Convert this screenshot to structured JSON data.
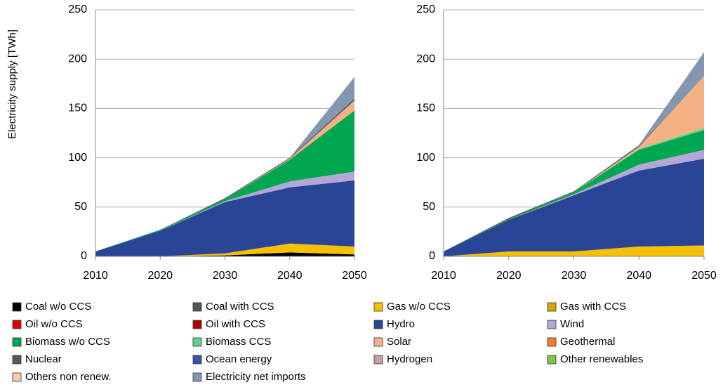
{
  "chart_data": [
    {
      "type": "area",
      "y_label": "Electricity supply [TWh]",
      "x": [
        2010,
        2020,
        2030,
        2040,
        2050
      ],
      "xlim": [
        2010,
        2050
      ],
      "xticks": [
        2010,
        2020,
        2030,
        2040,
        2050
      ],
      "ylim": [
        0,
        250
      ],
      "yticks": [
        0,
        50,
        100,
        150,
        200,
        250
      ],
      "grid": true,
      "series": [
        {
          "name": "Coal w/o CCS",
          "color": "#000000",
          "values": [
            0,
            0,
            1,
            4,
            2
          ]
        },
        {
          "name": "Coal with CCS",
          "color": "#555555",
          "values": [
            0,
            0,
            0,
            0,
            0
          ]
        },
        {
          "name": "Gas w/o CCS",
          "color": "#f5c000",
          "values": [
            0,
            0,
            2,
            9,
            8
          ]
        },
        {
          "name": "Gas with CCS",
          "color": "#d9a400",
          "values": [
            0,
            0,
            0,
            0,
            0
          ]
        },
        {
          "name": "Oil w/o CCS",
          "color": "#e00000",
          "values": [
            0,
            0,
            0,
            0,
            0
          ]
        },
        {
          "name": "Oil with CCS",
          "color": "#b00000",
          "values": [
            0,
            0,
            0,
            0,
            0
          ]
        },
        {
          "name": "Hydro",
          "color": "#2a4595",
          "values": [
            5,
            26,
            52,
            57,
            67
          ]
        },
        {
          "name": "Wind",
          "color": "#b4a7d6",
          "values": [
            0,
            0,
            1,
            6,
            9
          ]
        },
        {
          "name": "Biomass w/o CCS",
          "color": "#00a650",
          "values": [
            0,
            1,
            2,
            22,
            62
          ]
        },
        {
          "name": "Biomass CCS",
          "color": "#5fd38d",
          "values": [
            0,
            0,
            0,
            0,
            0
          ]
        },
        {
          "name": "Solar",
          "color": "#f4b183",
          "values": [
            0,
            0,
            0,
            1,
            10
          ]
        },
        {
          "name": "Geothermal",
          "color": "#ed7d31",
          "values": [
            0,
            0,
            0,
            0,
            0
          ]
        },
        {
          "name": "Nuclear",
          "color": "#595959",
          "values": [
            0,
            0,
            1,
            1,
            2
          ]
        },
        {
          "name": "Ocean energy",
          "color": "#3355aa",
          "values": [
            0,
            0,
            0,
            0,
            0
          ]
        },
        {
          "name": "Hydrogen",
          "color": "#c9a0a0",
          "values": [
            0,
            0,
            0,
            0,
            0
          ]
        },
        {
          "name": "Other renewables",
          "color": "#7cc644",
          "values": [
            0,
            0,
            0,
            0,
            0
          ]
        },
        {
          "name": "Others non renew.",
          "color": "#f8cbad",
          "values": [
            0,
            0,
            0,
            0,
            0
          ]
        },
        {
          "name": "Electricity net imports",
          "color": "#8497b0",
          "values": [
            0,
            0,
            0,
            0,
            22
          ]
        }
      ]
    },
    {
      "type": "area",
      "x": [
        2010,
        2020,
        2030,
        2040,
        2050
      ],
      "xlim": [
        2010,
        2050
      ],
      "xticks": [
        2010,
        2020,
        2030,
        2040,
        2050
      ],
      "ylim": [
        0,
        250
      ],
      "yticks": [
        0,
        50,
        100,
        150,
        200,
        250
      ],
      "grid": true,
      "series": [
        {
          "values": [
            0,
            0,
            0,
            0,
            0
          ]
        },
        {
          "values": [
            0,
            0,
            0,
            0,
            0
          ]
        },
        {
          "values": [
            0,
            5,
            5,
            10,
            11
          ]
        },
        {
          "values": [
            0,
            0,
            0,
            0,
            0
          ]
        },
        {
          "values": [
            0,
            0,
            0,
            0,
            0
          ]
        },
        {
          "values": [
            0,
            0,
            0,
            0,
            0
          ]
        },
        {
          "values": [
            5,
            32,
            57,
            77,
            88
          ]
        },
        {
          "values": [
            0,
            0,
            1,
            6,
            9
          ]
        },
        {
          "values": [
            0,
            1,
            2,
            15,
            20
          ]
        },
        {
          "values": [
            0,
            0,
            0,
            1,
            2
          ]
        },
        {
          "values": [
            0,
            0,
            0,
            2,
            53
          ]
        },
        {
          "values": [
            0,
            0,
            0,
            0,
            0
          ]
        },
        {
          "values": [
            0,
            1,
            1,
            1,
            0
          ]
        },
        {
          "values": [
            0,
            0,
            0,
            0,
            0
          ]
        },
        {
          "values": [
            0,
            0,
            0,
            0,
            0
          ]
        },
        {
          "values": [
            0,
            0,
            0,
            0,
            0
          ]
        },
        {
          "values": [
            0,
            0,
            0,
            0,
            0
          ]
        },
        {
          "values": [
            0,
            0,
            0,
            1,
            24
          ]
        }
      ]
    }
  ]
}
